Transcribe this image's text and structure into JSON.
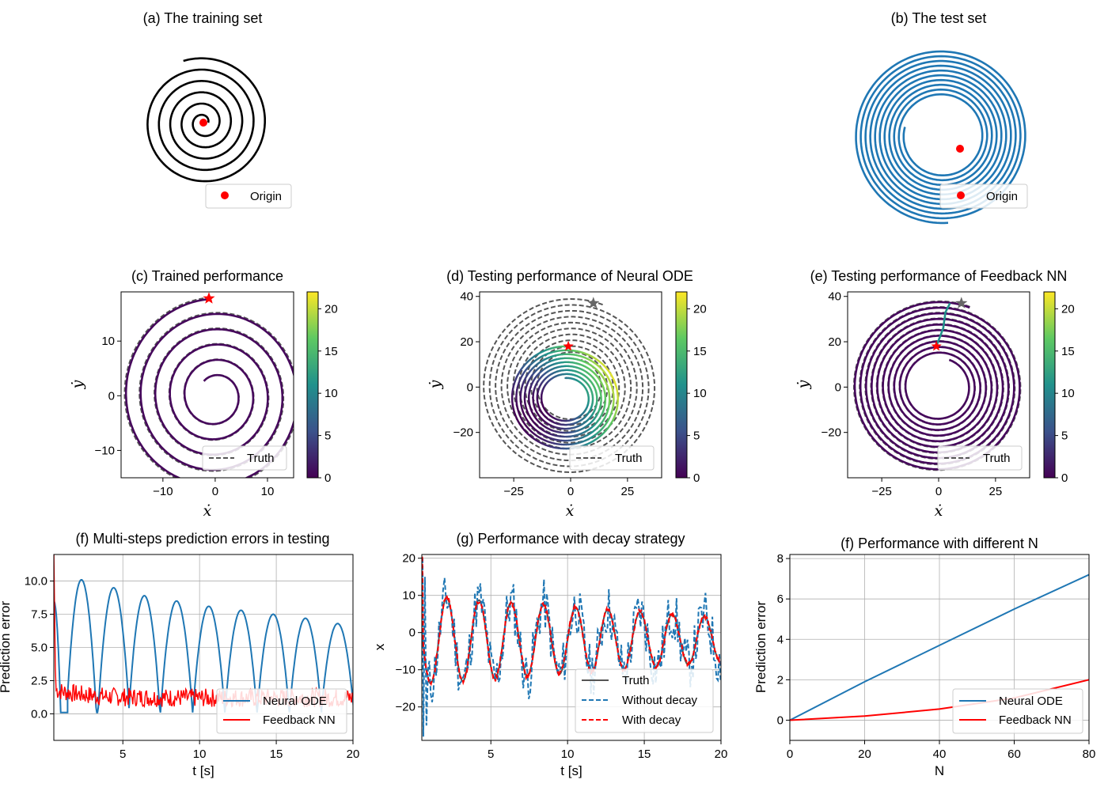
{
  "chart_data": [
    {
      "id": "a",
      "type": "line",
      "title": "(a) The training set",
      "legend": [
        "Origin"
      ],
      "legend_position": "bottom-right",
      "colors": {
        "curve": "#000000",
        "origin": "#ff0000"
      },
      "axes_visible": false
    },
    {
      "id": "b",
      "type": "line",
      "title": "(b) The test set",
      "legend": [
        "Origin"
      ],
      "legend_position": "bottom-right",
      "colors": {
        "curve": "#1f77b4",
        "origin": "#ff0000"
      },
      "axes_visible": false
    },
    {
      "id": "c",
      "type": "line",
      "title": "(c) Trained performance",
      "xlabel": "ẋ",
      "ylabel": "ẏ",
      "xlim": [
        -18,
        15
      ],
      "ylim": [
        -15,
        19
      ],
      "xticks": [
        -10,
        0,
        10
      ],
      "yticks": [
        -10,
        0,
        10
      ],
      "legend": [
        "Truth"
      ],
      "legend_position": "bottom-right",
      "colorbar": {
        "min": 0,
        "max": 22,
        "ticks": [
          0,
          5,
          10,
          15,
          20
        ],
        "colormap": "viridis"
      }
    },
    {
      "id": "d",
      "type": "line",
      "title": "(d) Testing performance of Neural ODE",
      "xlabel": "ẋ",
      "ylabel": "ẏ",
      "xlim": [
        -40,
        40
      ],
      "ylim": [
        -40,
        42
      ],
      "xticks": [
        -25,
        0,
        25
      ],
      "yticks": [
        -20,
        0,
        20,
        40
      ],
      "legend": [
        "Truth"
      ],
      "legend_position": "bottom-right",
      "colorbar": {
        "min": 0,
        "max": 22,
        "ticks": [
          0,
          5,
          10,
          15,
          20
        ],
        "colormap": "viridis"
      }
    },
    {
      "id": "e",
      "type": "line",
      "title": "(e) Testing performance of Feedback NN",
      "xlabel": "ẋ",
      "ylabel": "ẏ",
      "xlim": [
        -40,
        40
      ],
      "ylim": [
        -40,
        42
      ],
      "xticks": [
        -25,
        0,
        25
      ],
      "yticks": [
        -20,
        0,
        20,
        40
      ],
      "legend": [
        "Truth"
      ],
      "legend_position": "bottom-right",
      "colorbar": {
        "min": 0,
        "max": 22,
        "ticks": [
          0,
          5,
          10,
          15,
          20
        ],
        "colormap": "viridis"
      }
    },
    {
      "id": "f",
      "type": "line",
      "title": "(f) Multi-steps prediction errors in testing",
      "xlabel": "t [s]",
      "ylabel": "Prediction error",
      "xlim": [
        0.5,
        20
      ],
      "ylim": [
        -2,
        12
      ],
      "xticks": [
        5,
        10,
        15,
        20
      ],
      "yticks": [
        0.0,
        2.5,
        5.0,
        7.5,
        10.0
      ],
      "ytick_labels": [
        "0.0",
        "2.5",
        "5.0",
        "7.5",
        "10.0"
      ],
      "grid": true,
      "legend_position": "bottom-right",
      "series": [
        {
          "name": "Neural ODE",
          "color": "#1f77b4",
          "peaks": [
            [
              0.5,
              8.5
            ],
            [
              2.3,
              10.1
            ],
            [
              4.4,
              9.5
            ],
            [
              6.4,
              8.9
            ],
            [
              8.5,
              8.5
            ],
            [
              10.6,
              8.1
            ],
            [
              12.7,
              7.8
            ],
            [
              14.8,
              7.5
            ],
            [
              16.9,
              7.2
            ],
            [
              19.0,
              6.8
            ]
          ]
        },
        {
          "name": "Feedback NN",
          "color": "#ff0000",
          "mean_level": 1.2
        }
      ]
    },
    {
      "id": "g",
      "type": "line",
      "title": "(g) Performance with decay strategy",
      "xlabel": "t [s]",
      "ylabel": "x",
      "xlim": [
        0.5,
        20
      ],
      "ylim": [
        -29,
        21
      ],
      "xticks": [
        5,
        10,
        15,
        20
      ],
      "yticks": [
        -20,
        -10,
        0,
        10,
        20
      ],
      "grid": true,
      "legend_position": "bottom-right",
      "series": [
        {
          "name": "Truth",
          "color": "#555555",
          "amplitude_start": 12,
          "amplitude_end": 6,
          "period": 2.1
        },
        {
          "name": "Without decay",
          "color": "#1f77b4",
          "style": "dashed"
        },
        {
          "name": "With decay",
          "color": "#ff0000",
          "style": "dashed"
        }
      ]
    },
    {
      "id": "h",
      "type": "line",
      "title": "(f) Performance with different N",
      "xlabel": "N",
      "ylabel": "Prediction error",
      "xlim": [
        0,
        80
      ],
      "ylim": [
        -1,
        8.2
      ],
      "xticks": [
        0,
        20,
        40,
        60,
        80
      ],
      "yticks": [
        0,
        2,
        4,
        6,
        8
      ],
      "grid": true,
      "legend_position": "bottom-right",
      "series": [
        {
          "name": "Neural ODE",
          "color": "#1f77b4",
          "x": [
            0,
            20,
            40,
            60,
            80
          ],
          "y": [
            0.0,
            1.9,
            3.7,
            5.5,
            7.2
          ]
        },
        {
          "name": "Feedback NN",
          "color": "#ff0000",
          "x": [
            0,
            20,
            40,
            60,
            80
          ],
          "y": [
            0.0,
            0.2,
            0.55,
            1.1,
            2.0
          ]
        }
      ]
    }
  ]
}
